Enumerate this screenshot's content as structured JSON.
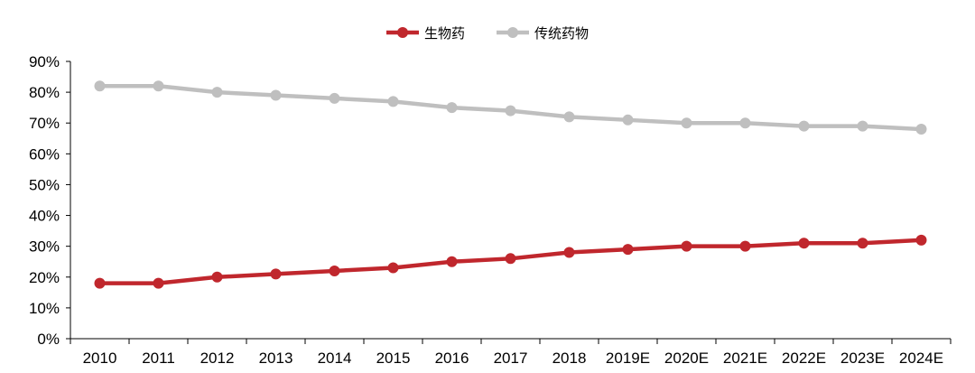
{
  "chart_data": {
    "type": "line",
    "title": "",
    "xlabel": "",
    "ylabel": "",
    "categories": [
      "2010",
      "2011",
      "2012",
      "2013",
      "2014",
      "2015",
      "2016",
      "2017",
      "2018",
      "2019E",
      "2020E",
      "2021E",
      "2022E",
      "2023E",
      "2024E"
    ],
    "y_ticks": [
      "0%",
      "10%",
      "20%",
      "30%",
      "40%",
      "50%",
      "60%",
      "70%",
      "80%",
      "90%"
    ],
    "ylim": [
      0,
      90
    ],
    "grid": false,
    "legend_position": "top-center",
    "series": [
      {
        "name": "生物药",
        "color": "#c0272d",
        "values": [
          18,
          18,
          20,
          21,
          22,
          23,
          25,
          26,
          28,
          29,
          30,
          30,
          31,
          31,
          32
        ]
      },
      {
        "name": "传统药物",
        "color": "#bfbfbf",
        "values": [
          82,
          82,
          80,
          79,
          78,
          77,
          75,
          74,
          72,
          71,
          70,
          70,
          69,
          69,
          68
        ]
      }
    ]
  }
}
